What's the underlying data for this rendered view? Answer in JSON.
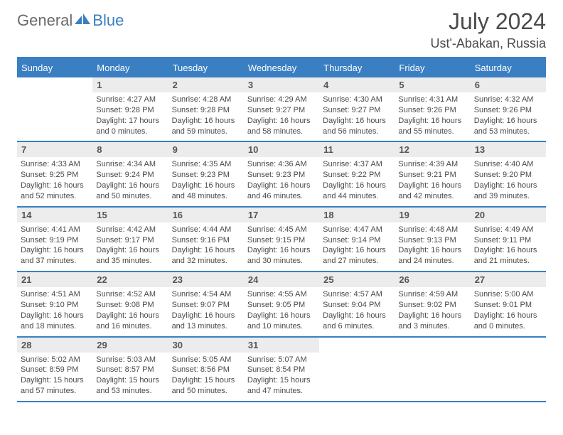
{
  "brand": {
    "part1": "General",
    "part2": "Blue"
  },
  "title": "July 2024",
  "location": "Ust'-Abakan, Russia",
  "colors": {
    "accent": "#3a7fc2",
    "header_bg": "#3a7fc2",
    "header_fg": "#ffffff",
    "daynum_bg": "#ececec",
    "border": "#3a7fc2",
    "text": "#4a4a4a"
  },
  "dayNames": [
    "Sunday",
    "Monday",
    "Tuesday",
    "Wednesday",
    "Thursday",
    "Friday",
    "Saturday"
  ],
  "weeks": [
    [
      {
        "blank": true
      },
      {
        "day": "1",
        "sunrise": "Sunrise: 4:27 AM",
        "sunset": "Sunset: 9:28 PM",
        "daylight1": "Daylight: 17 hours",
        "daylight2": "and 0 minutes."
      },
      {
        "day": "2",
        "sunrise": "Sunrise: 4:28 AM",
        "sunset": "Sunset: 9:28 PM",
        "daylight1": "Daylight: 16 hours",
        "daylight2": "and 59 minutes."
      },
      {
        "day": "3",
        "sunrise": "Sunrise: 4:29 AM",
        "sunset": "Sunset: 9:27 PM",
        "daylight1": "Daylight: 16 hours",
        "daylight2": "and 58 minutes."
      },
      {
        "day": "4",
        "sunrise": "Sunrise: 4:30 AM",
        "sunset": "Sunset: 9:27 PM",
        "daylight1": "Daylight: 16 hours",
        "daylight2": "and 56 minutes."
      },
      {
        "day": "5",
        "sunrise": "Sunrise: 4:31 AM",
        "sunset": "Sunset: 9:26 PM",
        "daylight1": "Daylight: 16 hours",
        "daylight2": "and 55 minutes."
      },
      {
        "day": "6",
        "sunrise": "Sunrise: 4:32 AM",
        "sunset": "Sunset: 9:26 PM",
        "daylight1": "Daylight: 16 hours",
        "daylight2": "and 53 minutes."
      }
    ],
    [
      {
        "day": "7",
        "sunrise": "Sunrise: 4:33 AM",
        "sunset": "Sunset: 9:25 PM",
        "daylight1": "Daylight: 16 hours",
        "daylight2": "and 52 minutes."
      },
      {
        "day": "8",
        "sunrise": "Sunrise: 4:34 AM",
        "sunset": "Sunset: 9:24 PM",
        "daylight1": "Daylight: 16 hours",
        "daylight2": "and 50 minutes."
      },
      {
        "day": "9",
        "sunrise": "Sunrise: 4:35 AM",
        "sunset": "Sunset: 9:23 PM",
        "daylight1": "Daylight: 16 hours",
        "daylight2": "and 48 minutes."
      },
      {
        "day": "10",
        "sunrise": "Sunrise: 4:36 AM",
        "sunset": "Sunset: 9:23 PM",
        "daylight1": "Daylight: 16 hours",
        "daylight2": "and 46 minutes."
      },
      {
        "day": "11",
        "sunrise": "Sunrise: 4:37 AM",
        "sunset": "Sunset: 9:22 PM",
        "daylight1": "Daylight: 16 hours",
        "daylight2": "and 44 minutes."
      },
      {
        "day": "12",
        "sunrise": "Sunrise: 4:39 AM",
        "sunset": "Sunset: 9:21 PM",
        "daylight1": "Daylight: 16 hours",
        "daylight2": "and 42 minutes."
      },
      {
        "day": "13",
        "sunrise": "Sunrise: 4:40 AM",
        "sunset": "Sunset: 9:20 PM",
        "daylight1": "Daylight: 16 hours",
        "daylight2": "and 39 minutes."
      }
    ],
    [
      {
        "day": "14",
        "sunrise": "Sunrise: 4:41 AM",
        "sunset": "Sunset: 9:19 PM",
        "daylight1": "Daylight: 16 hours",
        "daylight2": "and 37 minutes."
      },
      {
        "day": "15",
        "sunrise": "Sunrise: 4:42 AM",
        "sunset": "Sunset: 9:17 PM",
        "daylight1": "Daylight: 16 hours",
        "daylight2": "and 35 minutes."
      },
      {
        "day": "16",
        "sunrise": "Sunrise: 4:44 AM",
        "sunset": "Sunset: 9:16 PM",
        "daylight1": "Daylight: 16 hours",
        "daylight2": "and 32 minutes."
      },
      {
        "day": "17",
        "sunrise": "Sunrise: 4:45 AM",
        "sunset": "Sunset: 9:15 PM",
        "daylight1": "Daylight: 16 hours",
        "daylight2": "and 30 minutes."
      },
      {
        "day": "18",
        "sunrise": "Sunrise: 4:47 AM",
        "sunset": "Sunset: 9:14 PM",
        "daylight1": "Daylight: 16 hours",
        "daylight2": "and 27 minutes."
      },
      {
        "day": "19",
        "sunrise": "Sunrise: 4:48 AM",
        "sunset": "Sunset: 9:13 PM",
        "daylight1": "Daylight: 16 hours",
        "daylight2": "and 24 minutes."
      },
      {
        "day": "20",
        "sunrise": "Sunrise: 4:49 AM",
        "sunset": "Sunset: 9:11 PM",
        "daylight1": "Daylight: 16 hours",
        "daylight2": "and 21 minutes."
      }
    ],
    [
      {
        "day": "21",
        "sunrise": "Sunrise: 4:51 AM",
        "sunset": "Sunset: 9:10 PM",
        "daylight1": "Daylight: 16 hours",
        "daylight2": "and 18 minutes."
      },
      {
        "day": "22",
        "sunrise": "Sunrise: 4:52 AM",
        "sunset": "Sunset: 9:08 PM",
        "daylight1": "Daylight: 16 hours",
        "daylight2": "and 16 minutes."
      },
      {
        "day": "23",
        "sunrise": "Sunrise: 4:54 AM",
        "sunset": "Sunset: 9:07 PM",
        "daylight1": "Daylight: 16 hours",
        "daylight2": "and 13 minutes."
      },
      {
        "day": "24",
        "sunrise": "Sunrise: 4:55 AM",
        "sunset": "Sunset: 9:05 PM",
        "daylight1": "Daylight: 16 hours",
        "daylight2": "and 10 minutes."
      },
      {
        "day": "25",
        "sunrise": "Sunrise: 4:57 AM",
        "sunset": "Sunset: 9:04 PM",
        "daylight1": "Daylight: 16 hours",
        "daylight2": "and 6 minutes."
      },
      {
        "day": "26",
        "sunrise": "Sunrise: 4:59 AM",
        "sunset": "Sunset: 9:02 PM",
        "daylight1": "Daylight: 16 hours",
        "daylight2": "and 3 minutes."
      },
      {
        "day": "27",
        "sunrise": "Sunrise: 5:00 AM",
        "sunset": "Sunset: 9:01 PM",
        "daylight1": "Daylight: 16 hours",
        "daylight2": "and 0 minutes."
      }
    ],
    [
      {
        "day": "28",
        "sunrise": "Sunrise: 5:02 AM",
        "sunset": "Sunset: 8:59 PM",
        "daylight1": "Daylight: 15 hours",
        "daylight2": "and 57 minutes."
      },
      {
        "day": "29",
        "sunrise": "Sunrise: 5:03 AM",
        "sunset": "Sunset: 8:57 PM",
        "daylight1": "Daylight: 15 hours",
        "daylight2": "and 53 minutes."
      },
      {
        "day": "30",
        "sunrise": "Sunrise: 5:05 AM",
        "sunset": "Sunset: 8:56 PM",
        "daylight1": "Daylight: 15 hours",
        "daylight2": "and 50 minutes."
      },
      {
        "day": "31",
        "sunrise": "Sunrise: 5:07 AM",
        "sunset": "Sunset: 8:54 PM",
        "daylight1": "Daylight: 15 hours",
        "daylight2": "and 47 minutes."
      },
      {
        "blank": true
      },
      {
        "blank": true
      },
      {
        "blank": true
      }
    ]
  ]
}
